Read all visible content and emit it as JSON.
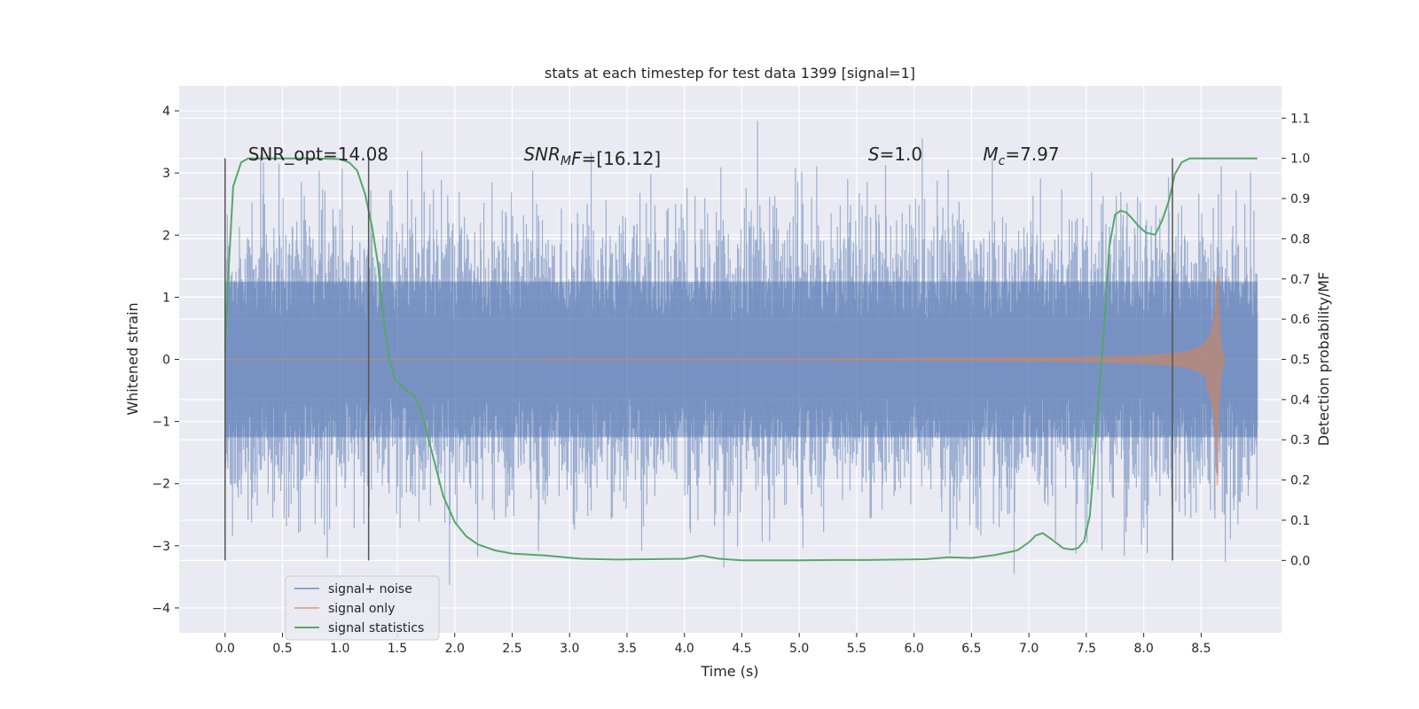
{
  "chart_data": {
    "type": "line",
    "title": "stats at each timestep for test data 1399 [signal=1]",
    "xlabel": "Time (s)",
    "ylabel": "Whitened strain",
    "y2label": "Detection probability/MF",
    "xlim": [
      -0.4,
      9.2
    ],
    "ylim": [
      -4.4,
      4.4
    ],
    "y2lim": [
      -0.18,
      1.18
    ],
    "xticks": [
      0.0,
      0.5,
      1.0,
      1.5,
      2.0,
      2.5,
      3.0,
      3.5,
      4.0,
      4.5,
      5.0,
      5.5,
      6.0,
      6.5,
      7.0,
      7.5,
      8.0,
      8.5
    ],
    "xtick_labels": [
      "0.0",
      "0.5",
      "1.0",
      "1.5",
      "2.0",
      "2.5",
      "3.0",
      "3.5",
      "4.0",
      "4.5",
      "5.0",
      "5.5",
      "6.0",
      "6.5",
      "7.0",
      "7.5",
      "8.0",
      "8.5"
    ],
    "yticks": [
      -4,
      -3,
      -2,
      -1,
      0,
      1,
      2,
      3,
      4
    ],
    "ytick_labels": [
      "−4",
      "−3",
      "−2",
      "−1",
      "0",
      "1",
      "2",
      "3",
      "4"
    ],
    "y2ticks": [
      0.0,
      0.1,
      0.2,
      0.3,
      0.4,
      0.5,
      0.6,
      0.7,
      0.8,
      0.9,
      1.0,
      1.1
    ],
    "y2tick_labels": [
      "0.0",
      "0.1",
      "0.2",
      "0.3",
      "0.4",
      "0.5",
      "0.6",
      "0.7",
      "0.8",
      "0.9",
      "1.0",
      "1.1"
    ],
    "grid": true,
    "legend_position": "lower-left",
    "annotations": [
      {
        "text": "SNR_opt=14.08",
        "x": 0.2,
        "y": 3.2
      },
      {
        "text": "SNR_MF=[16.12]",
        "x": 2.6,
        "y": 3.2
      },
      {
        "text": "S=1.0",
        "x": 5.6,
        "y": 3.2
      },
      {
        "text": "M_c=7.97",
        "x": 6.6,
        "y": 3.2
      }
    ],
    "vertical_markers": [
      0.0,
      1.25,
      8.25
    ],
    "series": [
      {
        "name": "signal+ noise",
        "color": "#4c72b0",
        "axis": "left",
        "kind": "noise",
        "t_start": 0.0,
        "t_end": 8.99,
        "std": 1.0,
        "max": 4.0,
        "min": -4.0
      },
      {
        "name": "signal only",
        "color": "#dd8452",
        "axis": "left",
        "kind": "chirp",
        "t_start": 0.0,
        "t_end": 8.7,
        "peak_time": 8.65,
        "peak_amplitude": 1.35,
        "min_amplitude": -2.05
      },
      {
        "name": "signal statistics",
        "color": "#55a868",
        "axis": "right",
        "x": [
          0.0,
          0.03,
          0.07,
          0.14,
          0.2,
          0.3,
          0.5,
          0.8,
          1.0,
          1.08,
          1.15,
          1.22,
          1.28,
          1.33,
          1.38,
          1.43,
          1.48,
          1.55,
          1.65,
          1.72,
          1.8,
          1.9,
          2.0,
          2.1,
          2.2,
          2.35,
          2.5,
          2.8,
          3.1,
          3.4,
          3.7,
          4.0,
          4.15,
          4.3,
          4.5,
          4.8,
          5.0,
          5.3,
          5.6,
          5.9,
          6.1,
          6.3,
          6.5,
          6.7,
          6.9,
          7.0,
          7.06,
          7.12,
          7.2,
          7.3,
          7.38,
          7.43,
          7.48,
          7.53,
          7.57,
          7.62,
          7.66,
          7.7,
          7.75,
          7.8,
          7.85,
          7.9,
          7.96,
          8.02,
          8.1,
          8.16,
          8.22,
          8.27,
          8.33,
          8.4,
          8.48,
          8.6,
          8.8,
          8.99
        ],
        "y": [
          0.52,
          0.72,
          0.93,
          0.99,
          1.0,
          1.0,
          1.0,
          1.0,
          0.998,
          0.99,
          0.97,
          0.91,
          0.83,
          0.74,
          0.6,
          0.5,
          0.45,
          0.43,
          0.41,
          0.36,
          0.27,
          0.16,
          0.095,
          0.06,
          0.04,
          0.025,
          0.017,
          0.012,
          0.004,
          0.002,
          0.003,
          0.004,
          0.012,
          0.004,
          0.0,
          0.0,
          0.0,
          0.001,
          0.001,
          0.002,
          0.003,
          0.008,
          0.006,
          0.013,
          0.025,
          0.045,
          0.062,
          0.068,
          0.052,
          0.03,
          0.027,
          0.031,
          0.048,
          0.11,
          0.25,
          0.45,
          0.6,
          0.78,
          0.86,
          0.87,
          0.865,
          0.85,
          0.83,
          0.815,
          0.81,
          0.845,
          0.895,
          0.96,
          0.99,
          1.0,
          1.0,
          1.0,
          1.0,
          1.0
        ]
      }
    ],
    "legend": [
      "signal+ noise",
      "signal only",
      "signal statistics"
    ]
  }
}
